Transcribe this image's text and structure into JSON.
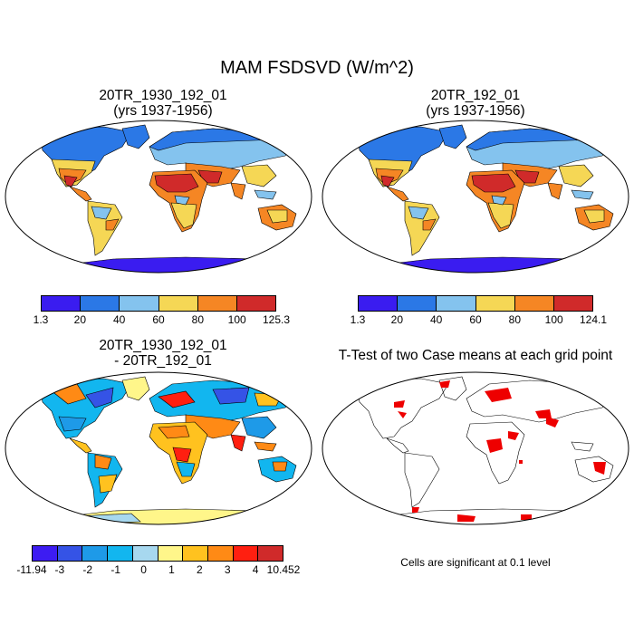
{
  "title": "MAM FSDSVD (W/m^2)",
  "panels": [
    {
      "title_line1": "20TR_1930_192_01",
      "title_line2": "(yrs 1937-1956)"
    },
    {
      "title_line1": "20TR_192_01",
      "title_line2": "(yrs 1937-1956)"
    },
    {
      "title_line1": "20TR_1930_192_01",
      "title_line2": "- 20TR_192_01"
    },
    {
      "title_line1": "T-Test of two Case means at each grid point",
      "title_line2": ""
    }
  ],
  "colorbars": {
    "panel1": {
      "labels": [
        "1.3",
        "20",
        "40",
        "60",
        "80",
        "100",
        "125.3"
      ],
      "colors": [
        "#3a1cf0",
        "#2b78e6",
        "#84c3ee",
        "#f5d755",
        "#f58624",
        "#d02a2a"
      ]
    },
    "panel2": {
      "labels": [
        "1.3",
        "20",
        "40",
        "60",
        "80",
        "100",
        "124.1"
      ],
      "colors": [
        "#3a1cf0",
        "#2b78e6",
        "#84c3ee",
        "#f5d755",
        "#f58624",
        "#d02a2a"
      ]
    },
    "diff": {
      "labels": [
        "-11.94",
        "-3",
        "-2",
        "-1",
        "0",
        "1",
        "2",
        "3",
        "4",
        "10.452"
      ],
      "colors": [
        "#3d1cf2",
        "#3553e6",
        "#1e9ae8",
        "#12b6ef",
        "#a7d8ef",
        "#fff68a",
        "#ffc21f",
        "#ff8a15",
        "#ff1f10",
        "#d02a2a"
      ]
    }
  },
  "significance_note": "Cells are significant at 0.1 level",
  "significance_color": "#ee0000"
}
